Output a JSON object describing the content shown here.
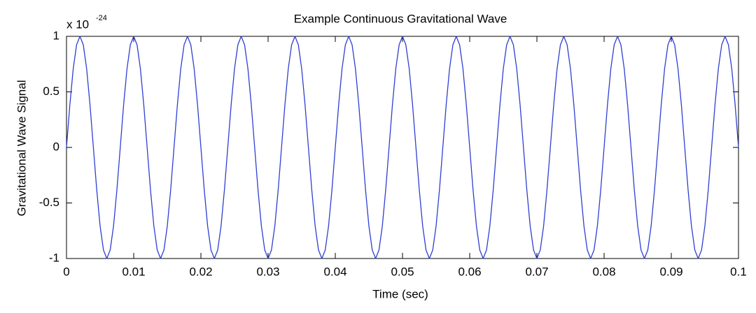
{
  "chart_data": {
    "type": "line",
    "title": "Example Continuous Gravitational Wave",
    "xlabel": "Time (sec)",
    "ylabel": "Gravitational Wave Signal",
    "multiplier": "x 10",
    "multiplier_exponent": "-24",
    "xlim": [
      0,
      0.1
    ],
    "ylim": [
      -1,
      1
    ],
    "xticks": [
      0,
      0.01,
      0.02,
      0.03,
      0.04,
      0.05,
      0.06,
      0.07,
      0.08,
      0.09,
      0.1
    ],
    "yticks": [
      -1,
      -0.5,
      0,
      0.5,
      1
    ],
    "x": [
      0,
      0.0005,
      0.001,
      0.0015,
      0.002,
      0.0025,
      0.003,
      0.0035,
      0.004,
      0.0045,
      0.005,
      0.0055,
      0.006,
      0.0065,
      0.007,
      0.0075,
      0.008,
      0.0085,
      0.009,
      0.0095,
      0.01,
      0.0105,
      0.011,
      0.0115,
      0.012,
      0.0125,
      0.013,
      0.0135,
      0.014,
      0.0145,
      0.015,
      0.0155,
      0.016,
      0.0165,
      0.017,
      0.0175,
      0.018,
      0.0185,
      0.019,
      0.0195,
      0.02,
      0.0205,
      0.021,
      0.0215,
      0.022,
      0.0225,
      0.023,
      0.0235,
      0.024,
      0.0245,
      0.025,
      0.0255,
      0.026,
      0.0265,
      0.027,
      0.0275,
      0.028,
      0.0285,
      0.029,
      0.0295,
      0.03,
      0.0305,
      0.031,
      0.0315,
      0.032,
      0.0325,
      0.033,
      0.0335,
      0.034,
      0.0345,
      0.035,
      0.0355,
      0.036,
      0.0365,
      0.037,
      0.0375,
      0.038,
      0.0385,
      0.039,
      0.0395,
      0.04,
      0.0405,
      0.041,
      0.0415,
      0.042,
      0.0425,
      0.043,
      0.0435,
      0.044,
      0.0445,
      0.045,
      0.0455,
      0.046,
      0.0465,
      0.047,
      0.0475,
      0.048,
      0.0485,
      0.049,
      0.0495,
      0.05,
      0.0505,
      0.051,
      0.0515,
      0.052,
      0.0525,
      0.053,
      0.0535,
      0.054,
      0.0545,
      0.055,
      0.0555,
      0.056,
      0.0565,
      0.057,
      0.0575,
      0.058,
      0.0585,
      0.059,
      0.0595,
      0.06,
      0.0605,
      0.061,
      0.0615,
      0.062,
      0.0625,
      0.063,
      0.0635,
      0.064,
      0.0645,
      0.065,
      0.0655,
      0.066,
      0.0665,
      0.067,
      0.0675,
      0.068,
      0.0685,
      0.069,
      0.0695,
      0.07,
      0.0705,
      0.071,
      0.0715,
      0.072,
      0.0725,
      0.073,
      0.0735,
      0.074,
      0.0745,
      0.075,
      0.0755,
      0.076,
      0.0765,
      0.077,
      0.0775,
      0.078,
      0.0785,
      0.079,
      0.0795,
      0.08,
      0.0805,
      0.081,
      0.0815,
      0.082,
      0.0825,
      0.083,
      0.0835,
      0.084,
      0.0845,
      0.085,
      0.0855,
      0.086,
      0.0865,
      0.087,
      0.0875,
      0.088,
      0.0885,
      0.089,
      0.0895,
      0.09,
      0.0905,
      0.091,
      0.0915,
      0.092,
      0.0925,
      0.093,
      0.0935,
      0.094,
      0.0945,
      0.095,
      0.0955,
      0.096,
      0.0965,
      0.097,
      0.0975,
      0.098,
      0.0985,
      0.099,
      0.0995,
      0.1
    ],
    "series": [
      {
        "color": "#2f3fd0",
        "values": [
          0,
          0.3827,
          0.7071,
          0.9239,
          1,
          0.9239,
          0.7071,
          0.3827,
          0,
          -0.3827,
          -0.7071,
          -0.9239,
          -1,
          -0.9239,
          -0.7071,
          -0.3827,
          0,
          0.3827,
          0.7071,
          0.9239,
          1,
          0.9239,
          0.7071,
          0.3827,
          0,
          -0.3827,
          -0.7071,
          -0.9239,
          -1,
          -0.9239,
          -0.7071,
          -0.3827,
          0,
          0.3827,
          0.7071,
          0.9239,
          1,
          0.9239,
          0.7071,
          0.3827,
          0,
          -0.3827,
          -0.7071,
          -0.9239,
          -1,
          -0.9239,
          -0.7071,
          -0.3827,
          0,
          0.3827,
          0.7071,
          0.9239,
          1,
          0.9239,
          0.7071,
          0.3827,
          0,
          -0.3827,
          -0.7071,
          -0.9239,
          -1,
          -0.9239,
          -0.7071,
          -0.3827,
          0,
          0.3827,
          0.7071,
          0.9239,
          1,
          0.9239,
          0.7071,
          0.3827,
          0,
          -0.3827,
          -0.7071,
          -0.9239,
          -1,
          -0.9239,
          -0.7071,
          -0.3827,
          0,
          0.3827,
          0.7071,
          0.9239,
          1,
          0.9239,
          0.7071,
          0.3827,
          0,
          -0.3827,
          -0.7071,
          -0.9239,
          -1,
          -0.9239,
          -0.7071,
          -0.3827,
          0,
          0.3827,
          0.7071,
          0.9239,
          1,
          0.9239,
          0.7071,
          0.3827,
          0,
          -0.3827,
          -0.7071,
          -0.9239,
          -1,
          -0.9239,
          -0.7071,
          -0.3827,
          0,
          0.3827,
          0.7071,
          0.9239,
          1,
          0.9239,
          0.7071,
          0.3827,
          0,
          -0.3827,
          -0.7071,
          -0.9239,
          -1,
          -0.9239,
          -0.7071,
          -0.3827,
          0,
          0.3827,
          0.7071,
          0.9239,
          1,
          0.9239,
          0.7071,
          0.3827,
          0,
          -0.3827,
          -0.7071,
          -0.9239,
          -1,
          -0.9239,
          -0.7071,
          -0.3827,
          0,
          0.3827,
          0.7071,
          0.9239,
          1,
          0.9239,
          0.7071,
          0.3827,
          0,
          -0.3827,
          -0.7071,
          -0.9239,
          -1,
          -0.9239,
          -0.7071,
          -0.3827,
          0,
          0.3827,
          0.7071,
          0.9239,
          1,
          0.9239,
          0.7071,
          0.3827,
          0,
          -0.3827,
          -0.7071,
          -0.9239,
          -1,
          -0.9239,
          -0.7071,
          -0.3827,
          0,
          0.3827,
          0.7071,
          0.9239,
          1,
          0.9239,
          0.7071,
          0.3827,
          0,
          -0.3827,
          -0.7071,
          -0.9239,
          -1,
          -0.9239,
          -0.7071,
          -0.3827,
          0,
          0.3827,
          0.7071,
          0.9239,
          1,
          0.9239,
          0.7071,
          0.3827,
          0
        ]
      }
    ]
  }
}
